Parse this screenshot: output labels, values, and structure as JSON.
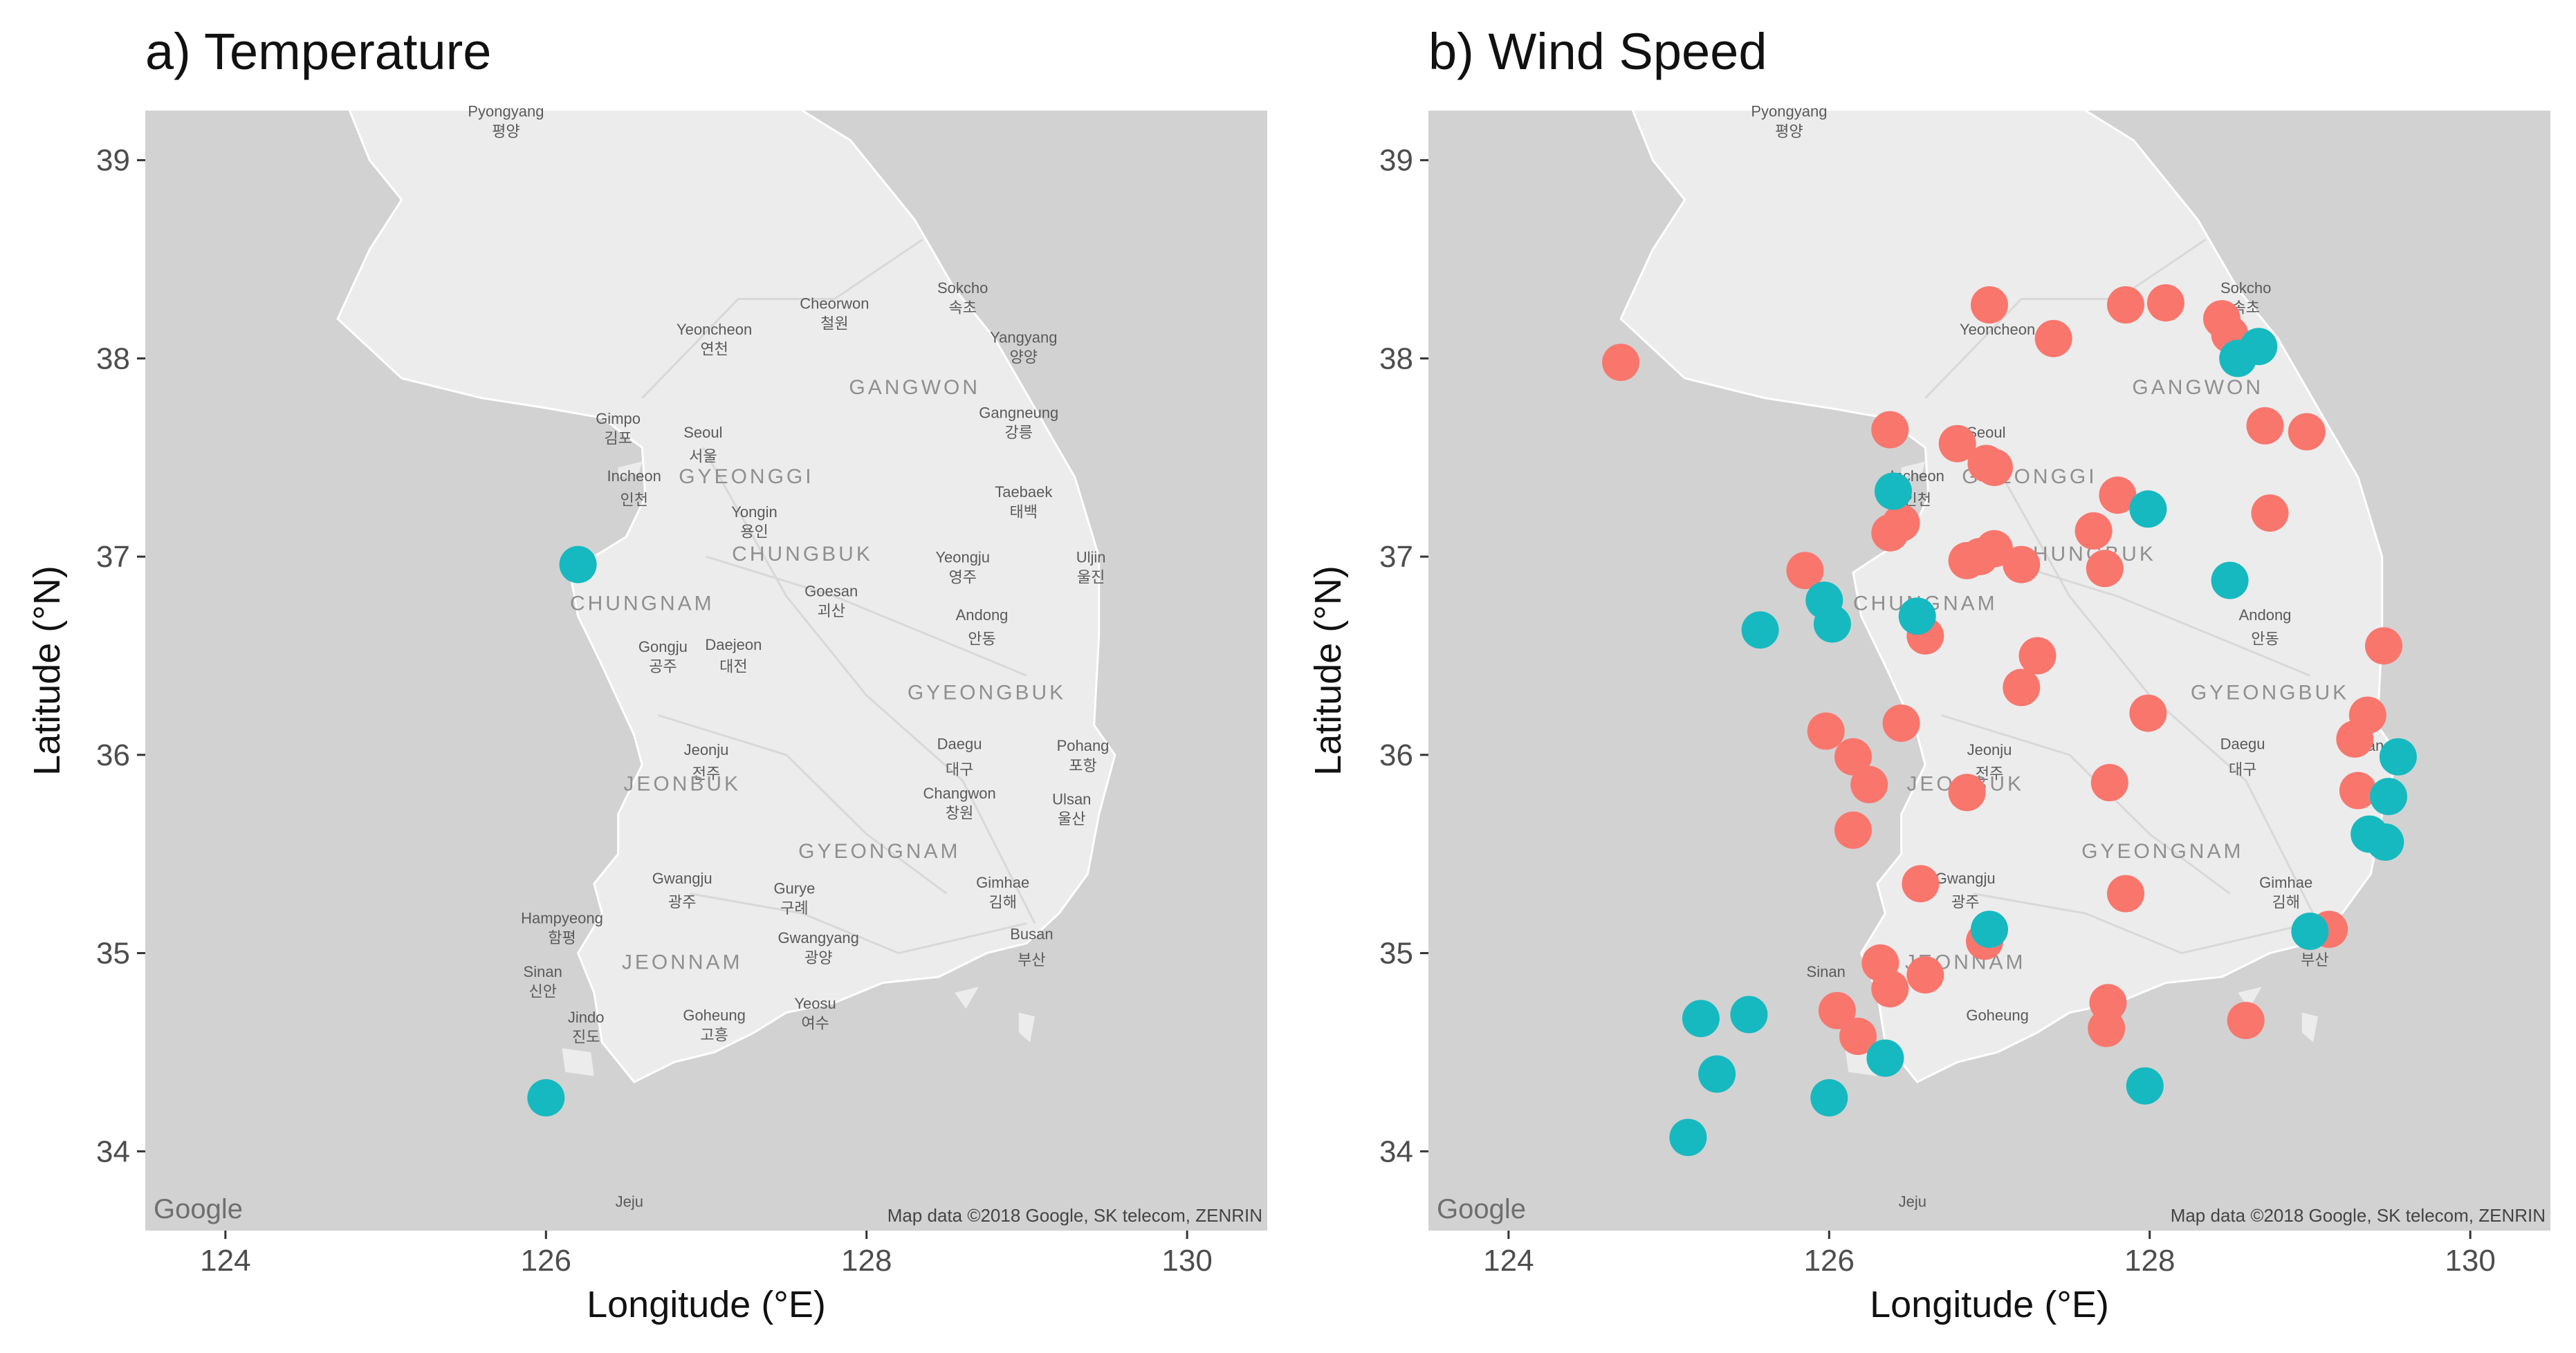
{
  "figure": {
    "panels": [
      {
        "title": "a) Temperature",
        "xlabel": "Longitude (°E)",
        "ylabel": "Latitude (°N)",
        "xlim": [
          123.5,
          130.5
        ],
        "ylim": [
          33.6,
          39.25
        ],
        "xticks": [
          "124",
          "126",
          "128",
          "130"
        ],
        "yticks": [
          "34",
          "35",
          "36",
          "37",
          "38",
          "39"
        ],
        "google_logo": "Google",
        "attribution": "Map data ©2018 Google, SK telecom, ZENRIN",
        "places": [
          {
            "text": "Pyongyang",
            "lon": 125.75,
            "lat": 39.22
          },
          {
            "text": "평양",
            "lon": 125.75,
            "lat": 39.12
          },
          {
            "text": "Yeoncheon",
            "lon": 127.05,
            "lat": 38.12
          },
          {
            "text": "연천",
            "lon": 127.05,
            "lat": 38.02
          },
          {
            "text": "Cheorwon",
            "lon": 127.8,
            "lat": 38.25
          },
          {
            "text": "철원",
            "lon": 127.8,
            "lat": 38.15
          },
          {
            "text": "Sokcho",
            "lon": 128.6,
            "lat": 38.33
          },
          {
            "text": "속초",
            "lon": 128.6,
            "lat": 38.23
          },
          {
            "text": "Yangyang",
            "lon": 128.98,
            "lat": 38.08
          },
          {
            "text": "양양",
            "lon": 128.98,
            "lat": 37.98
          },
          {
            "text": "GANGWON",
            "lon": 128.3,
            "lat": 37.82
          },
          {
            "text": "Seoul",
            "lon": 126.98,
            "lat": 37.6
          },
          {
            "text": "서울",
            "lon": 126.98,
            "lat": 37.48
          },
          {
            "text": "Gimpo",
            "lon": 126.45,
            "lat": 37.67
          },
          {
            "text": "김포",
            "lon": 126.45,
            "lat": 37.57
          },
          {
            "text": "Gangneung",
            "lon": 128.95,
            "lat": 37.7
          },
          {
            "text": "강릉",
            "lon": 128.95,
            "lat": 37.6
          },
          {
            "text": "Incheon",
            "lon": 126.55,
            "lat": 37.38
          },
          {
            "text": "인천",
            "lon": 126.55,
            "lat": 37.26
          },
          {
            "text": "GYEONGGI",
            "lon": 127.25,
            "lat": 37.37
          },
          {
            "text": "Yongin",
            "lon": 127.3,
            "lat": 37.2
          },
          {
            "text": "용인",
            "lon": 127.3,
            "lat": 37.1
          },
          {
            "text": "Taebaek",
            "lon": 128.98,
            "lat": 37.3
          },
          {
            "text": "태백",
            "lon": 128.98,
            "lat": 37.2
          },
          {
            "text": "CHUNGBUK",
            "lon": 127.6,
            "lat": 36.98
          },
          {
            "text": "Yeongju",
            "lon": 128.6,
            "lat": 36.97
          },
          {
            "text": "영주",
            "lon": 128.6,
            "lat": 36.87
          },
          {
            "text": "Uljin",
            "lon": 129.4,
            "lat": 36.97
          },
          {
            "text": "울진",
            "lon": 129.4,
            "lat": 36.87
          },
          {
            "text": "CHUNGNAM",
            "lon": 126.6,
            "lat": 36.73
          },
          {
            "text": "Goesan",
            "lon": 127.78,
            "lat": 36.8
          },
          {
            "text": "괴산",
            "lon": 127.78,
            "lat": 36.7
          },
          {
            "text": "Andong",
            "lon": 128.72,
            "lat": 36.68
          },
          {
            "text": "안동",
            "lon": 128.72,
            "lat": 36.56
          },
          {
            "text": "Gongju",
            "lon": 126.73,
            "lat": 36.52
          },
          {
            "text": "공주",
            "lon": 126.73,
            "lat": 36.42
          },
          {
            "text": "Daejeon",
            "lon": 127.17,
            "lat": 36.53
          },
          {
            "text": "대전",
            "lon": 127.17,
            "lat": 36.42
          },
          {
            "text": "GYEONGBUK",
            "lon": 128.75,
            "lat": 36.28
          },
          {
            "text": "Jeonju",
            "lon": 127.0,
            "lat": 36.0
          },
          {
            "text": "전주",
            "lon": 127.0,
            "lat": 35.88
          },
          {
            "text": "Daegu",
            "lon": 128.58,
            "lat": 36.03
          },
          {
            "text": "대구",
            "lon": 128.58,
            "lat": 35.9
          },
          {
            "text": "Pohang",
            "lon": 129.35,
            "lat": 36.02
          },
          {
            "text": "포항",
            "lon": 129.35,
            "lat": 35.92
          },
          {
            "text": "JEONBUK",
            "lon": 126.85,
            "lat": 35.82
          },
          {
            "text": "Changwon",
            "lon": 128.58,
            "lat": 35.78
          },
          {
            "text": "창원",
            "lon": 128.58,
            "lat": 35.68
          },
          {
            "text": "Ulsan",
            "lon": 129.28,
            "lat": 35.75
          },
          {
            "text": "울산",
            "lon": 129.28,
            "lat": 35.65
          },
          {
            "text": "GYEONGNAM",
            "lon": 128.08,
            "lat": 35.48
          },
          {
            "text": "Gwangju",
            "lon": 126.85,
            "lat": 35.35
          },
          {
            "text": "광주",
            "lon": 126.85,
            "lat": 35.23
          },
          {
            "text": "Gurye",
            "lon": 127.55,
            "lat": 35.3
          },
          {
            "text": "구례",
            "lon": 127.55,
            "lat": 35.2
          },
          {
            "text": "Gimhae",
            "lon": 128.85,
            "lat": 35.33
          },
          {
            "text": "김해",
            "lon": 128.85,
            "lat": 35.23
          },
          {
            "text": "Hampyeong",
            "lon": 126.1,
            "lat": 35.15
          },
          {
            "text": "함평",
            "lon": 126.1,
            "lat": 35.05
          },
          {
            "text": "Gwangyang",
            "lon": 127.7,
            "lat": 35.05
          },
          {
            "text": "광양",
            "lon": 127.7,
            "lat": 34.95
          },
          {
            "text": "Busan",
            "lon": 129.03,
            "lat": 35.07
          },
          {
            "text": "부산",
            "lon": 129.03,
            "lat": 34.94
          },
          {
            "text": "JEONNAM",
            "lon": 126.85,
            "lat": 34.92
          },
          {
            "text": "Sinan",
            "lon": 125.98,
            "lat": 34.88
          },
          {
            "text": "신안",
            "lon": 125.98,
            "lat": 34.78
          },
          {
            "text": "Jindo",
            "lon": 126.25,
            "lat": 34.65
          },
          {
            "text": "진도",
            "lon": 126.25,
            "lat": 34.55
          },
          {
            "text": "Goheung",
            "lon": 127.05,
            "lat": 34.66
          },
          {
            "text": "고흥",
            "lon": 127.05,
            "lat": 34.56
          },
          {
            "text": "Yeosu",
            "lon": 127.68,
            "lat": 34.72
          },
          {
            "text": "여수",
            "lon": 127.68,
            "lat": 34.62
          },
          {
            "text": "Jeju",
            "lon": 126.52,
            "lat": 33.72
          }
        ]
      },
      {
        "title": "b) Wind Speed",
        "xlabel": "Longitude (°E)",
        "ylabel": "Latitude (°N)",
        "xlim": [
          123.5,
          130.5
        ],
        "ylim": [
          33.6,
          39.25
        ],
        "xticks": [
          "124",
          "126",
          "128",
          "130"
        ],
        "yticks": [
          "34",
          "35",
          "36",
          "37",
          "38",
          "39"
        ],
        "google_logo": "Google",
        "attribution": "Map data ©2018 Google, SK telecom, ZENRIN",
        "places": [
          {
            "text": "Pyongyang",
            "lon": 125.75,
            "lat": 39.22
          },
          {
            "text": "평양",
            "lon": 125.75,
            "lat": 39.12
          },
          {
            "text": "Yeoncheon",
            "lon": 127.05,
            "lat": 38.12
          },
          {
            "text": "Sokcho",
            "lon": 128.6,
            "lat": 38.33
          },
          {
            "text": "속초",
            "lon": 128.6,
            "lat": 38.23
          },
          {
            "text": "GANGWON",
            "lon": 128.3,
            "lat": 37.82
          },
          {
            "text": "Seoul",
            "lon": 126.98,
            "lat": 37.6
          },
          {
            "text": "서울",
            "lon": 126.98,
            "lat": 37.48
          },
          {
            "text": "Incheon",
            "lon": 126.55,
            "lat": 37.38
          },
          {
            "text": "인천",
            "lon": 126.55,
            "lat": 37.26
          },
          {
            "text": "GYEONGGI",
            "lon": 127.25,
            "lat": 37.37
          },
          {
            "text": "CHUNGBUK",
            "lon": 127.6,
            "lat": 36.98
          },
          {
            "text": "CHUNGNAM",
            "lon": 126.6,
            "lat": 36.73
          },
          {
            "text": "Andong",
            "lon": 128.72,
            "lat": 36.68
          },
          {
            "text": "안동",
            "lon": 128.72,
            "lat": 36.56
          },
          {
            "text": "GYEONGBUK",
            "lon": 128.75,
            "lat": 36.28
          },
          {
            "text": "Jeonju",
            "lon": 127.0,
            "lat": 36.0
          },
          {
            "text": "전주",
            "lon": 127.0,
            "lat": 35.88
          },
          {
            "text": "Daegu",
            "lon": 128.58,
            "lat": 36.03
          },
          {
            "text": "대구",
            "lon": 128.58,
            "lat": 35.9
          },
          {
            "text": "Pohang",
            "lon": 129.35,
            "lat": 36.02
          },
          {
            "text": "JEONBUK",
            "lon": 126.85,
            "lat": 35.82
          },
          {
            "text": "GYEONGNAM",
            "lon": 128.08,
            "lat": 35.48
          },
          {
            "text": "Gwangju",
            "lon": 126.85,
            "lat": 35.35
          },
          {
            "text": "광주",
            "lon": 126.85,
            "lat": 35.23
          },
          {
            "text": "Gimhae",
            "lon": 128.85,
            "lat": 35.33
          },
          {
            "text": "김해",
            "lon": 128.85,
            "lat": 35.23
          },
          {
            "text": "Busan",
            "lon": 129.03,
            "lat": 35.07
          },
          {
            "text": "부산",
            "lon": 129.03,
            "lat": 34.94
          },
          {
            "text": "JEONNAM",
            "lon": 126.85,
            "lat": 34.92
          },
          {
            "text": "Sinan",
            "lon": 125.98,
            "lat": 34.88
          },
          {
            "text": "Goheung",
            "lon": 127.05,
            "lat": 34.66
          },
          {
            "text": "Jeju",
            "lon": 126.52,
            "lat": 33.72
          }
        ]
      }
    ]
  },
  "colors": {
    "ocean": "#d2d2d2",
    "land": "#ececec",
    "teal": "#16b9c0",
    "salmon": "#f9766d",
    "place_text": "#5a5a5a"
  },
  "map_data": {
    "temperature_stations": [
      {
        "lon": 126.2,
        "lat": 36.96
      },
      {
        "lon": 126.0,
        "lat": 34.27
      }
    ],
    "wind_speed_salmon": [
      [
        124.7,
        37.98
      ],
      [
        126.38,
        37.64
      ],
      [
        126.8,
        37.57
      ],
      [
        126.98,
        37.47
      ],
      [
        127.03,
        37.45
      ],
      [
        127.0,
        38.27
      ],
      [
        127.4,
        38.1
      ],
      [
        127.85,
        38.27
      ],
      [
        128.1,
        38.28
      ],
      [
        128.45,
        38.2
      ],
      [
        128.5,
        38.12
      ],
      [
        128.72,
        37.66
      ],
      [
        128.98,
        37.63
      ],
      [
        128.75,
        37.22
      ],
      [
        127.8,
        37.31
      ],
      [
        127.65,
        37.13
      ],
      [
        127.72,
        36.94
      ],
      [
        126.45,
        37.17
      ],
      [
        126.38,
        37.12
      ],
      [
        125.85,
        36.93
      ],
      [
        126.86,
        36.98
      ],
      [
        126.94,
        37.0
      ],
      [
        127.03,
        37.04
      ],
      [
        127.2,
        36.96
      ],
      [
        126.6,
        36.6
      ],
      [
        127.3,
        36.5
      ],
      [
        127.2,
        36.34
      ],
      [
        126.45,
        36.16
      ],
      [
        125.98,
        36.12
      ],
      [
        127.99,
        36.21
      ],
      [
        126.15,
        35.99
      ],
      [
        126.25,
        35.85
      ],
      [
        126.86,
        35.81
      ],
      [
        127.75,
        35.86
      ],
      [
        126.15,
        35.62
      ],
      [
        126.57,
        35.35
      ],
      [
        127.85,
        35.3
      ],
      [
        126.97,
        35.06
      ],
      [
        126.32,
        34.95
      ],
      [
        126.38,
        34.82
      ],
      [
        126.6,
        34.89
      ],
      [
        126.05,
        34.71
      ],
      [
        126.18,
        34.58
      ],
      [
        127.74,
        34.75
      ],
      [
        127.73,
        34.62
      ],
      [
        128.6,
        34.66
      ],
      [
        129.12,
        35.12
      ],
      [
        129.46,
        36.55
      ],
      [
        129.36,
        36.2
      ],
      [
        129.28,
        36.08
      ],
      [
        129.3,
        35.82
      ]
    ],
    "wind_speed_teal": [
      [
        128.55,
        38.0
      ],
      [
        128.68,
        38.06
      ],
      [
        127.99,
        37.24
      ],
      [
        126.4,
        37.33
      ],
      [
        125.97,
        36.78
      ],
      [
        126.02,
        36.66
      ],
      [
        125.57,
        36.63
      ],
      [
        126.55,
        36.7
      ],
      [
        128.5,
        36.88
      ],
      [
        129.55,
        35.99
      ],
      [
        129.49,
        35.79
      ],
      [
        129.37,
        35.6
      ],
      [
        129.47,
        35.56
      ],
      [
        129.0,
        35.11
      ],
      [
        127.0,
        35.12
      ],
      [
        125.2,
        34.67
      ],
      [
        125.5,
        34.69
      ],
      [
        125.3,
        34.39
      ],
      [
        125.12,
        34.07
      ],
      [
        126.0,
        34.27
      ],
      [
        126.35,
        34.47
      ],
      [
        127.97,
        34.33
      ]
    ]
  }
}
